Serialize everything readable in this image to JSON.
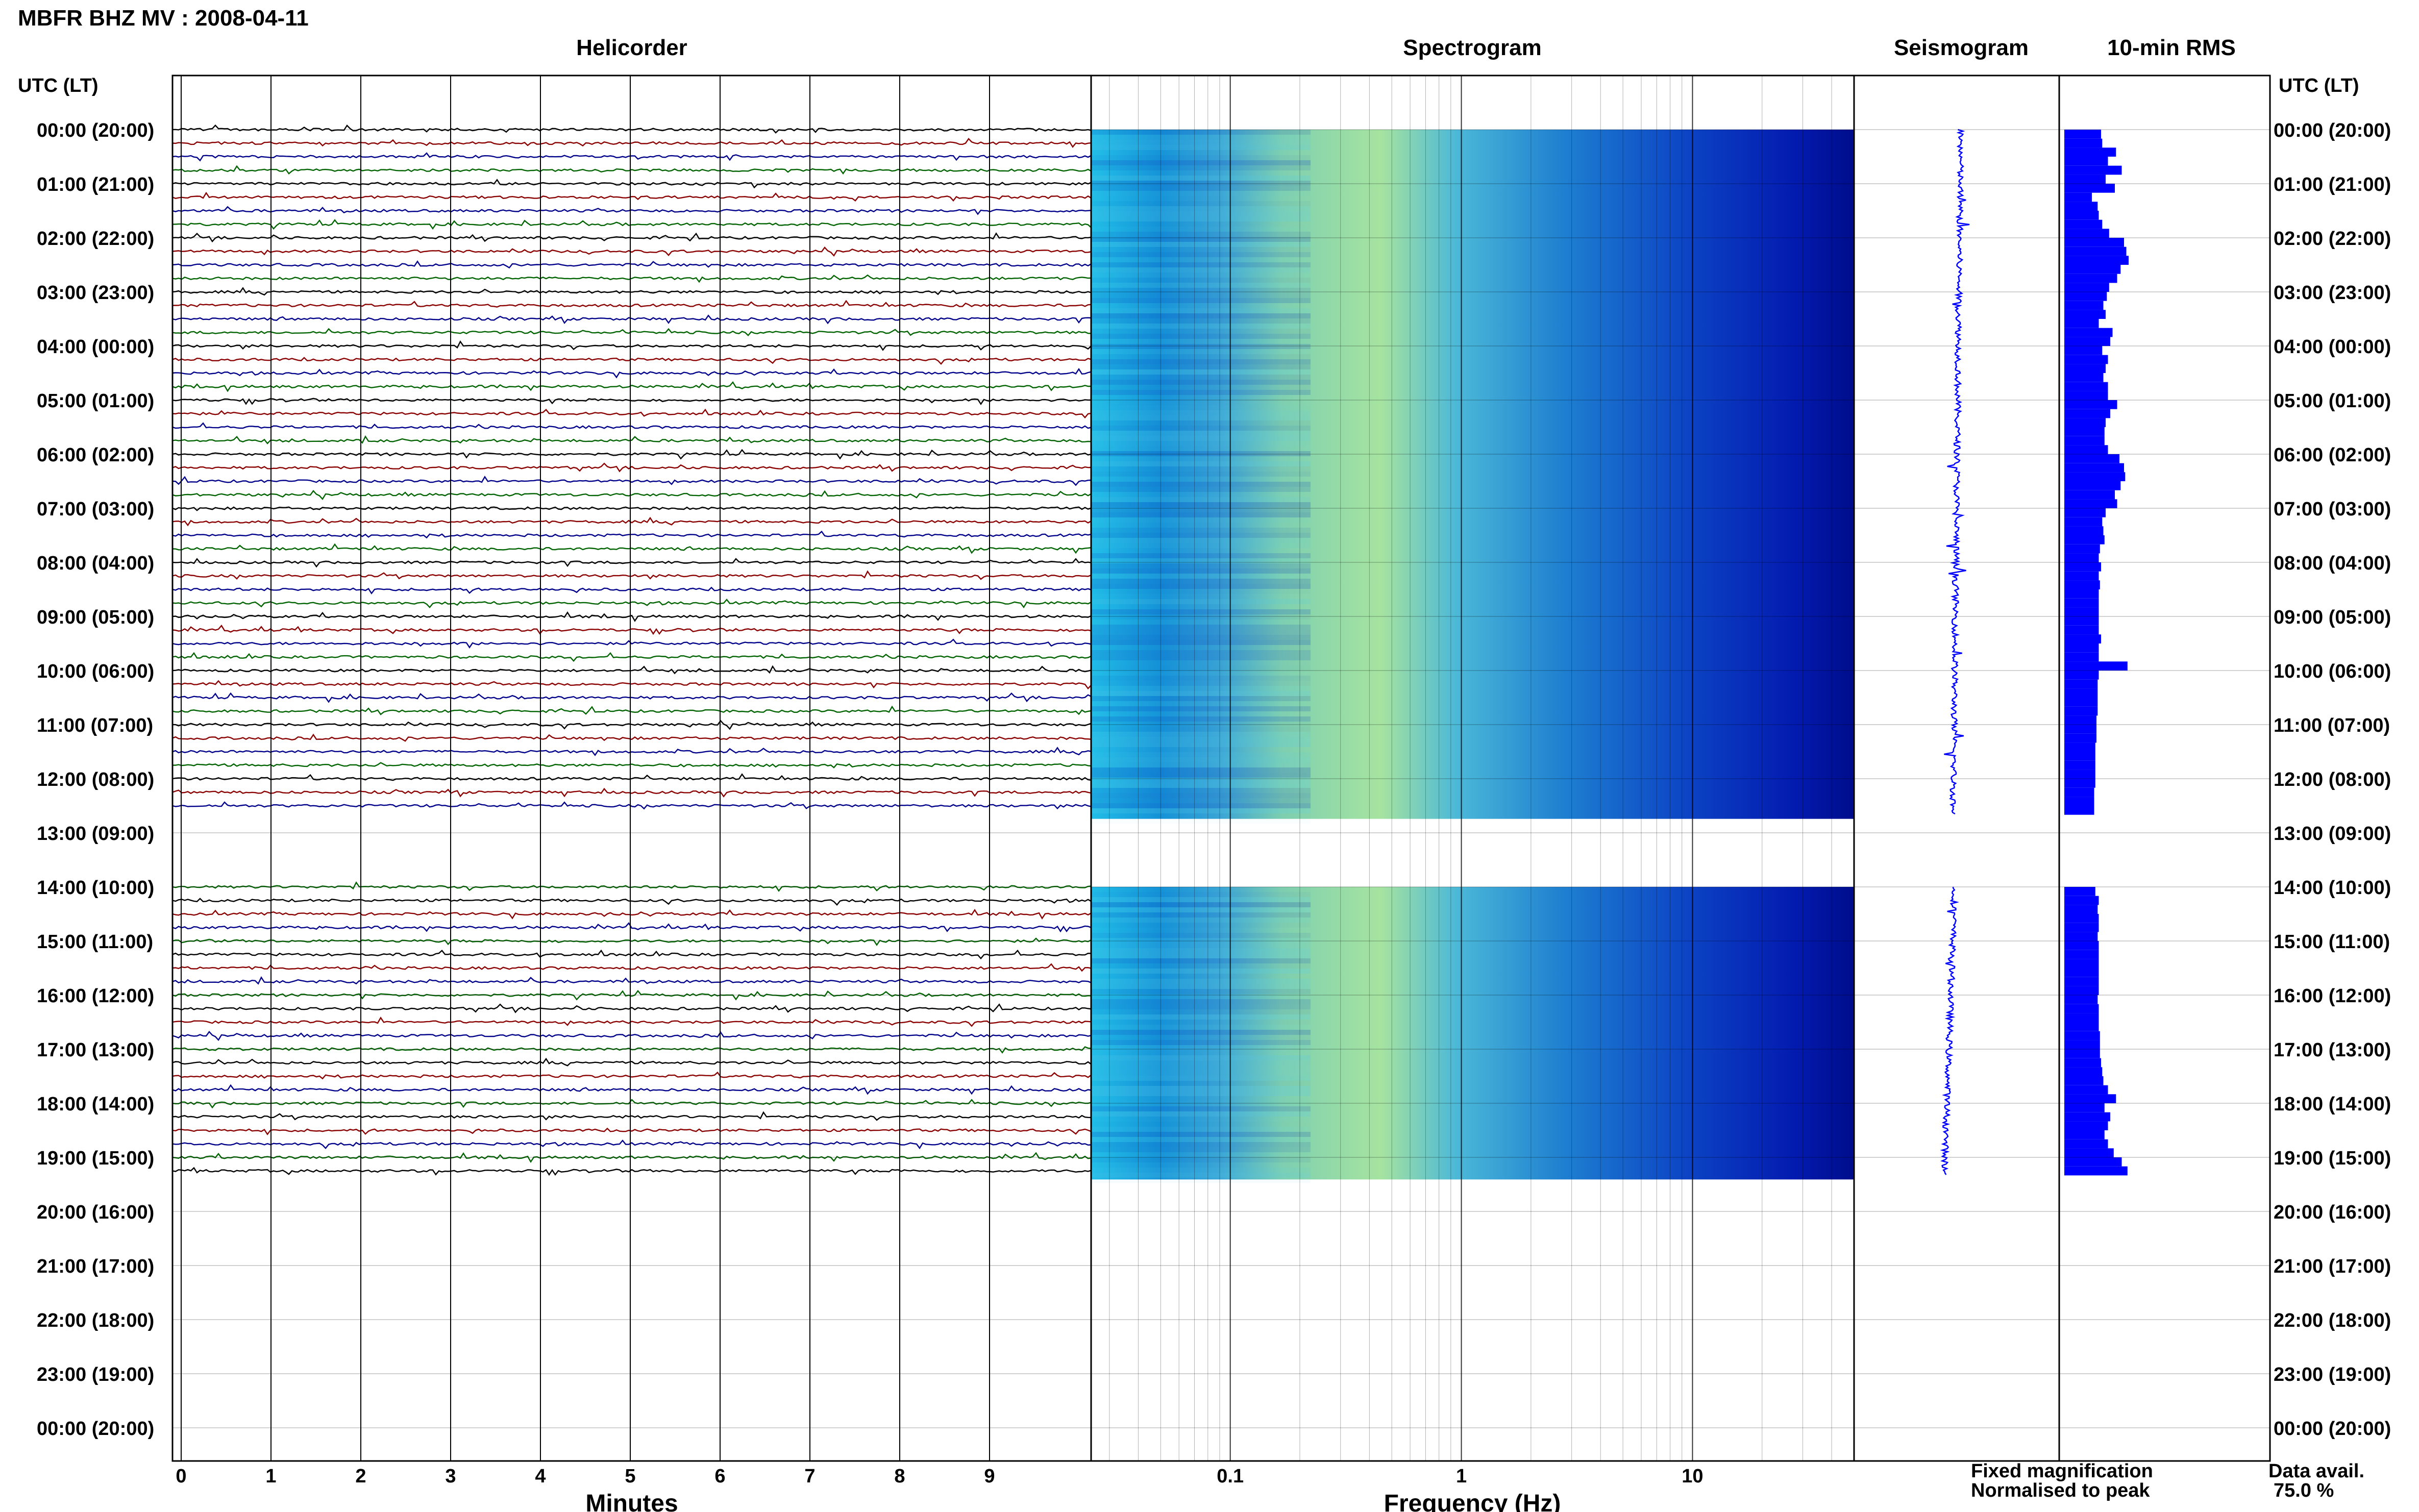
{
  "title": "MBFR BHZ MV : 2008-04-11",
  "panels": {
    "helicorder": "Helicorder",
    "spectrogram": "Spectrogram",
    "seismogram": "Seismogram",
    "rms": "10-min RMS"
  },
  "axis": {
    "time_header_left": "UTC (LT)",
    "time_header_right": "UTC (LT)",
    "minutes_label": "Minutes",
    "frequency_label": "Frequency (Hz)"
  },
  "legend": {
    "fixed": "Fixed magnification",
    "normalised": "Normalised to peak",
    "fixed_color": "#0000ff",
    "normalised_color": "#ff0000"
  },
  "availability": {
    "label": "Data avail.",
    "value": "75.0 %"
  },
  "colors": {
    "trace_cycle": [
      "#000000",
      "#8b0000",
      "#00008b",
      "#006400"
    ],
    "spectrogram_low": "#00008b",
    "spectrogram_high": "#ffff00",
    "rms_bar": "#0000ff"
  },
  "chart_data": [
    {
      "type": "line",
      "name": "helicorder",
      "title": "Helicorder",
      "xlabel": "Minutes",
      "x_ticks": [
        "0",
        "1",
        "2",
        "3",
        "4",
        "5",
        "6",
        "7",
        "8",
        "9"
      ],
      "xlim": [
        0,
        10
      ],
      "y_ticks": [
        "00:00 (20:00)",
        "01:00 (21:00)",
        "02:00 (22:00)",
        "03:00 (23:00)",
        "04:00 (00:00)",
        "05:00 (01:00)",
        "06:00 (02:00)",
        "07:00 (03:00)",
        "08:00 (04:00)",
        "09:00 (05:00)",
        "10:00 (06:00)",
        "11:00 (07:00)",
        "12:00 (08:00)",
        "13:00 (09:00)",
        "14:00 (10:00)",
        "15:00 (11:00)",
        "16:00 (12:00)",
        "17:00 (13:00)",
        "18:00 (14:00)",
        "19:00 (15:00)",
        "20:00 (16:00)",
        "21:00 (17:00)",
        "22:00 (18:00)",
        "23:00 (19:00)",
        "00:00 (20:00)"
      ],
      "data_segments_utc": [
        [
          "00:00",
          "12:40"
        ],
        [
          "14:00",
          "19:20"
        ]
      ]
    },
    {
      "type": "heatmap",
      "name": "spectrogram",
      "title": "Spectrogram",
      "xlabel": "Frequency (Hz)",
      "x_scale": "log",
      "x_ticks": [
        "0.1",
        "1",
        "10"
      ],
      "xlim": [
        0.025,
        50
      ],
      "data_segments_utc": [
        [
          "00:00",
          "12:40"
        ],
        [
          "14:00",
          "19:20"
        ]
      ]
    },
    {
      "type": "line",
      "name": "seismogram",
      "title": "Seismogram",
      "data_segments_utc": [
        [
          "00:00",
          "12:40"
        ],
        [
          "14:00",
          "19:20"
        ]
      ]
    },
    {
      "type": "bar",
      "name": "rms",
      "title": "10-min RMS",
      "bin_minutes": 10,
      "segment1_start_utc": "00:00",
      "segment1_values": [
        0.32,
        0.33,
        0.45,
        0.38,
        0.5,
        0.36,
        0.44,
        0.24,
        0.29,
        0.3,
        0.33,
        0.39,
        0.52,
        0.54,
        0.56,
        0.49,
        0.46,
        0.39,
        0.37,
        0.34,
        0.36,
        0.3,
        0.42,
        0.4,
        0.33,
        0.38,
        0.36,
        0.34,
        0.38,
        0.38,
        0.46,
        0.4,
        0.36,
        0.35,
        0.35,
        0.38,
        0.48,
        0.52,
        0.53,
        0.49,
        0.44,
        0.46,
        0.36,
        0.33,
        0.34,
        0.35,
        0.31,
        0.3,
        0.32,
        0.3,
        0.31,
        0.3,
        0.3,
        0.3,
        0.3,
        0.3,
        0.32,
        0.3,
        0.3,
        0.55,
        0.3,
        0.29,
        0.29,
        0.29,
        0.29,
        0.28,
        0.28,
        0.28,
        0.27,
        0.27,
        0.27,
        0.27,
        0.27,
        0.26,
        0.26,
        0.26
      ],
      "segment2_start_utc": "14:00",
      "segment2_values": [
        0.27,
        0.3,
        0.29,
        0.3,
        0.3,
        0.29,
        0.3,
        0.3,
        0.3,
        0.3,
        0.3,
        0.3,
        0.29,
        0.3,
        0.3,
        0.3,
        0.31,
        0.31,
        0.31,
        0.32,
        0.33,
        0.34,
        0.38,
        0.45,
        0.35,
        0.4,
        0.38,
        0.35,
        0.38,
        0.43,
        0.5,
        0.55
      ]
    }
  ]
}
